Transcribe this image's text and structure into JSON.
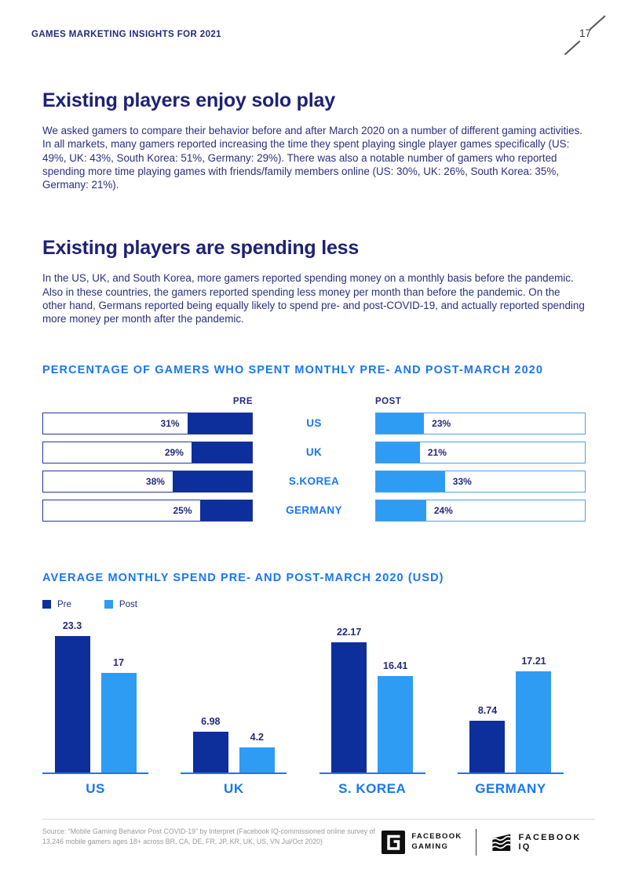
{
  "header": {
    "title": "GAMES MARKETING INSIGHTS FOR 2021",
    "page_number": "17"
  },
  "sections": [
    {
      "title": "Existing players enjoy solo play",
      "body": "We asked gamers to compare their behavior before and after March 2020 on a number of different gaming activities. In all markets, many gamers reported increasing the time they spent playing single player games specifically (US: 49%, UK: 43%, South Korea: 51%, Germany: 29%). There was also a notable number of gamers who reported spending more time playing games with friends/family members online (US: 30%, UK: 26%, South Korea: 35%, Germany: 21%)."
    },
    {
      "title": "Existing players are spending less",
      "body": "In the US, UK, and South Korea, more gamers reported spending money on a monthly basis before the pandemic. Also in these countries, the gamers reported spending less money per month than before the pandemic. On the other hand, Germans reported being equally likely to spend pre- and post-COVID-19, and actually reported spending more money per month after the pandemic."
    }
  ],
  "colors": {
    "accent_blue": "#1877f2",
    "navy_text": "#232a7d",
    "bar_dark_navy": "#0c2f9c",
    "bar_light_blue": "#2f9cf3",
    "pre_bar_border": "#23379f",
    "post_bar_border": "#4aa0f3"
  },
  "chart_data": [
    {
      "type": "bar",
      "orientation": "horizontal",
      "title": "PERCENTAGE OF GAMERS WHO SPENT MONTHLY PRE- AND POST-MARCH 2020",
      "categories": [
        "US",
        "UK",
        "S.KOREA",
        "GERMANY"
      ],
      "series": [
        {
          "name": "PRE",
          "values": [
            31,
            29,
            38,
            25
          ],
          "unit": "%",
          "anchor": "right",
          "color": "#0c2f9c"
        },
        {
          "name": "POST",
          "values": [
            23,
            21,
            33,
            24
          ],
          "unit": "%",
          "anchor": "left",
          "color": "#2f9cf3"
        }
      ],
      "xlim": [
        0,
        100
      ],
      "grid": false,
      "value_labels": "inside-adjacent"
    },
    {
      "type": "bar",
      "orientation": "vertical",
      "title": "AVERAGE MONTHLY SPEND PRE- AND POST-MARCH 2020 (USD)",
      "categories": [
        "US",
        "UK",
        "S. KOREA",
        "GERMANY"
      ],
      "legend": [
        "Pre",
        "Post"
      ],
      "legend_position": "top-left",
      "series": [
        {
          "name": "Pre",
          "values": [
            23.3,
            6.98,
            22.17,
            8.74
          ],
          "labels": [
            "23.3",
            "6.98",
            "22.17",
            "8.74"
          ],
          "color": "#0c2f9c"
        },
        {
          "name": "Post",
          "values": [
            17,
            4.2,
            16.41,
            17.21
          ],
          "labels": [
            "17",
            "4.2",
            "16.41",
            "17.21"
          ],
          "color": "#2f9cf3"
        }
      ],
      "ylim": [
        0,
        25
      ],
      "grid": false,
      "value_labels": "above"
    }
  ],
  "footer": {
    "source": "Source: “Mobile Gaming Behavior Post COVID-19” by Interpret (Facebook IQ-commissioned online survey of 13,246 mobile gamers ages 18+ across BR, CA, DE, FR, JP, KR, UK, US, VN Jul/Oct 2020)",
    "logo_gaming_line1": "FACEBOOK",
    "logo_gaming_line2": "GAMING",
    "logo_iq": "FACEBOOK IQ"
  }
}
